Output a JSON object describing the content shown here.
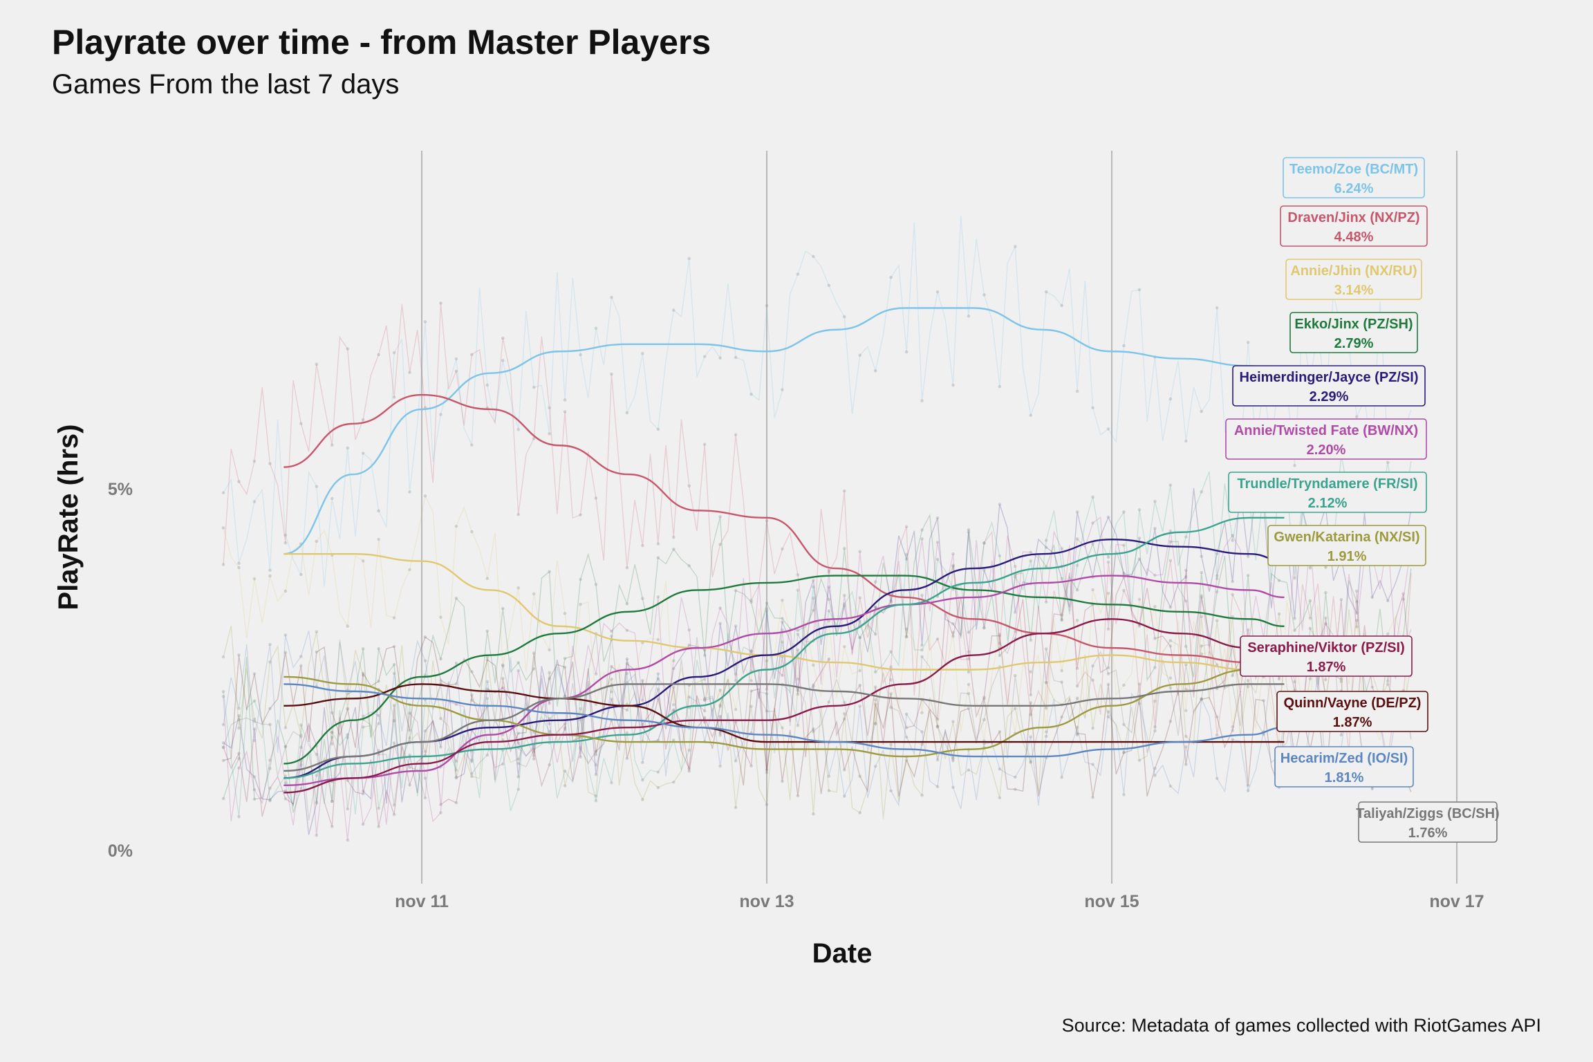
{
  "title": "Playrate over time - from Master Players",
  "subtitle": "Games From the last 7 days",
  "source": "Source: Metadata of games collected with RiotGames API",
  "chart_data": {
    "type": "line",
    "title": "Playrate over time - from Master Players",
    "subtitle": "Games From the last 7 days",
    "xlabel": "Date",
    "ylabel": "PlayRate (hrs)",
    "x_ticks": [
      "nov 11",
      "nov 13",
      "nov 15",
      "nov 17"
    ],
    "x_tick_values": [
      11,
      13,
      15,
      17
    ],
    "y_ticks": [
      "0%",
      "5%"
    ],
    "y_tick_values": [
      0,
      5
    ],
    "xlim": [
      9.8,
      17.5
    ],
    "ylim": [
      -0.2,
      9.7
    ],
    "grid": "vertical major lines",
    "legend": "none (end labels at right)",
    "smooth_x": [
      10.2,
      10.6,
      11.0,
      11.4,
      11.8,
      12.2,
      12.6,
      13.0,
      13.4,
      13.8,
      14.2,
      14.6,
      15.0,
      15.4,
      15.8,
      16.0
    ],
    "series": [
      {
        "name": "Teemo/Zoe (BC/MT)",
        "label": "6.24%",
        "color": "#7cc4ea",
        "smooth": [
          4.1,
          5.2,
          6.1,
          6.6,
          6.9,
          7.0,
          7.0,
          6.9,
          7.2,
          7.5,
          7.5,
          7.2,
          6.9,
          6.8,
          6.7,
          6.6
        ],
        "raw_level": 7.0,
        "raw_amp": 1.3,
        "label_end": 6.24
      },
      {
        "name": "Draven/Jinx (NX/PZ)",
        "label": "4.48%",
        "color": "#c8566b",
        "smooth": [
          5.3,
          5.9,
          6.3,
          6.1,
          5.6,
          5.2,
          4.7,
          4.6,
          3.9,
          3.5,
          3.2,
          3.0,
          2.8,
          2.7,
          2.6,
          2.5
        ],
        "raw_level": 5.2,
        "raw_amp": 1.4,
        "label_end": 4.48
      },
      {
        "name": "Annie/Jhin (NX/RU)",
        "label": "3.14%",
        "color": "#e0c870",
        "smooth": [
          4.1,
          4.1,
          4.0,
          3.6,
          3.1,
          2.9,
          2.8,
          2.7,
          2.6,
          2.5,
          2.5,
          2.6,
          2.7,
          2.6,
          2.5,
          2.5
        ],
        "raw_level": 3.2,
        "raw_amp": 1.0,
        "label_end": 3.14
      },
      {
        "name": "Ekko/Jinx (PZ/SH)",
        "label": "2.79%",
        "color": "#1e7a3c",
        "smooth": [
          1.2,
          1.8,
          2.4,
          2.7,
          3.0,
          3.3,
          3.6,
          3.7,
          3.8,
          3.8,
          3.6,
          3.5,
          3.4,
          3.3,
          3.2,
          3.1
        ],
        "raw_level": 2.8,
        "raw_amp": 1.0,
        "label_end": 2.79
      },
      {
        "name": "Heimerdinger/Jayce (PZ/SI)",
        "label": "2.29%",
        "color": "#2a1a7a",
        "smooth": [
          1.0,
          1.3,
          1.5,
          1.7,
          1.8,
          2.0,
          2.4,
          2.7,
          3.1,
          3.6,
          3.9,
          4.1,
          4.3,
          4.2,
          4.1,
          4.0
        ],
        "raw_level": 2.3,
        "raw_amp": 0.9,
        "label_end": 2.29
      },
      {
        "name": "Annie/Twisted Fate (BW/NX)",
        "label": "2.20%",
        "color": "#b04aa6",
        "smooth": [
          0.9,
          1.0,
          1.1,
          1.6,
          2.1,
          2.5,
          2.8,
          3.0,
          3.2,
          3.4,
          3.5,
          3.7,
          3.8,
          3.7,
          3.6,
          3.5
        ],
        "raw_level": 2.2,
        "raw_amp": 0.9,
        "label_end": 2.2
      },
      {
        "name": "Trundle/Tryndamere (FR/SI)",
        "label": "2.12%",
        "color": "#3aa38e",
        "smooth": [
          1.0,
          1.2,
          1.3,
          1.4,
          1.5,
          1.6,
          2.0,
          2.5,
          3.0,
          3.4,
          3.7,
          3.9,
          4.1,
          4.4,
          4.6,
          4.6
        ],
        "raw_level": 2.1,
        "raw_amp": 0.9,
        "label_end": 2.12
      },
      {
        "name": "Gwen/Katarina (NX/SI)",
        "label": "1.91%",
        "color": "#9c9a3c",
        "smooth": [
          2.4,
          2.3,
          2.0,
          1.8,
          1.6,
          1.5,
          1.5,
          1.4,
          1.4,
          1.3,
          1.4,
          1.7,
          2.0,
          2.3,
          2.5,
          2.6
        ],
        "raw_level": 1.9,
        "raw_amp": 0.9,
        "label_end": 1.91
      },
      {
        "name": "Seraphine/Viktor (PZ/SI)",
        "label": "1.87%",
        "color": "#8a1a4a",
        "smooth": [
          0.8,
          1.0,
          1.2,
          1.5,
          1.6,
          1.7,
          1.8,
          1.8,
          2.0,
          2.3,
          2.7,
          3.0,
          3.2,
          3.0,
          2.8,
          2.7
        ],
        "raw_level": 1.9,
        "raw_amp": 0.9,
        "label_end": 1.87
      },
      {
        "name": "Quinn/Vayne (DE/PZ)",
        "label": "1.87%",
        "color": "#5a0f0f",
        "smooth": [
          2.0,
          2.1,
          2.3,
          2.2,
          2.1,
          2.0,
          1.7,
          1.5,
          1.5,
          1.5,
          1.5,
          1.5,
          1.5,
          1.5,
          1.5,
          1.5
        ],
        "raw_level": 1.9,
        "raw_amp": 0.8,
        "label_end": 1.87
      },
      {
        "name": "Hecarim/Zed (IO/SI)",
        "label": "1.81%",
        "color": "#5b86c2",
        "smooth": [
          2.3,
          2.2,
          2.1,
          2.0,
          1.9,
          1.8,
          1.7,
          1.6,
          1.5,
          1.4,
          1.3,
          1.3,
          1.4,
          1.5,
          1.6,
          1.7
        ],
        "raw_level": 1.8,
        "raw_amp": 0.8,
        "label_end": 1.81
      },
      {
        "name": "Taliyah/Ziggs (BC/SH)",
        "label": "1.76%",
        "color": "#777777",
        "smooth": [
          1.1,
          1.3,
          1.5,
          1.8,
          2.1,
          2.3,
          2.3,
          2.3,
          2.2,
          2.1,
          2.0,
          2.0,
          2.1,
          2.2,
          2.3,
          2.3
        ],
        "raw_level": 1.8,
        "raw_amp": 0.8,
        "label_end": 1.76
      }
    ]
  }
}
